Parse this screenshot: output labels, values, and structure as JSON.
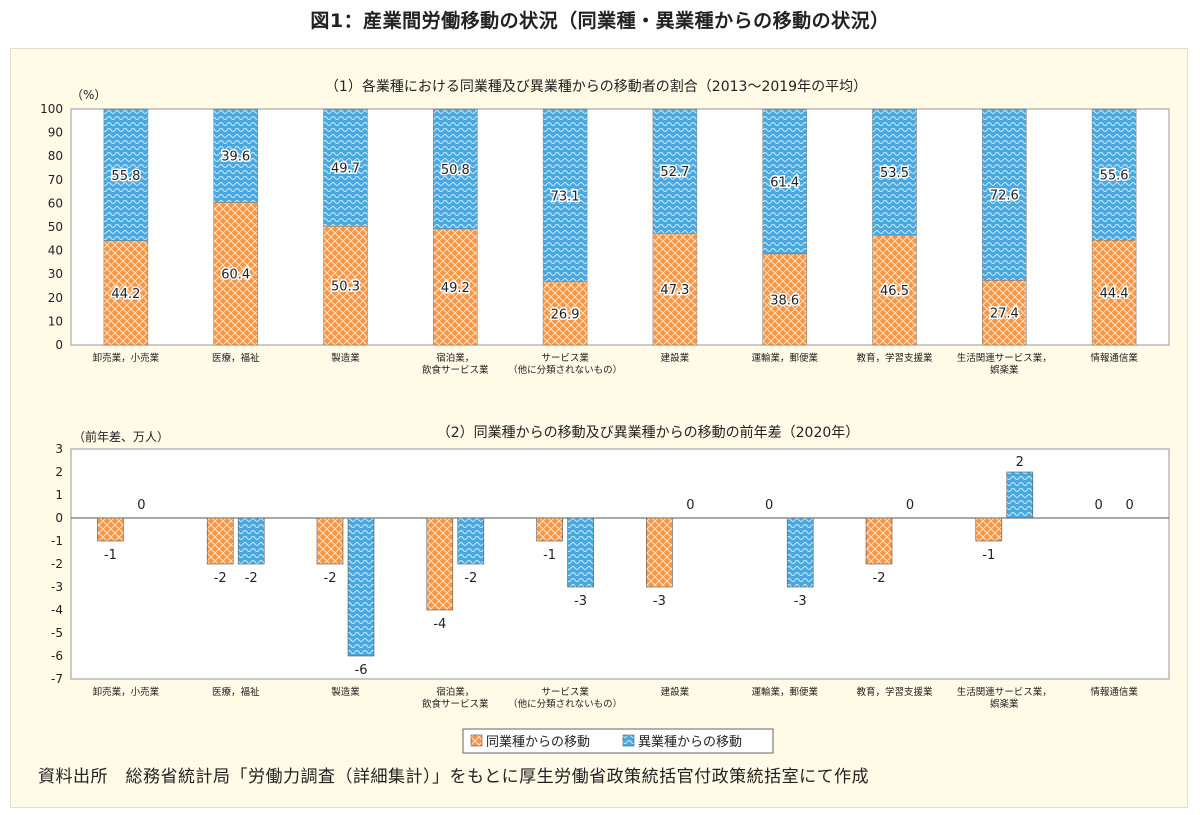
{
  "page": {
    "title": "図1：産業間労働移動の状況（同業種・異業種からの移動の状況）",
    "source": "資料出所　総務省統計局「労働力調査（詳細集計）」をもとに厚生労働省政策統括官付政策統括室にて作成"
  },
  "colors": {
    "same": "#f79646",
    "same_pattern": "#fde3c8",
    "diff": "#4aa8e0",
    "diff_pattern": "#d2ecfb",
    "frame": "#fffbe6"
  },
  "legend": {
    "same_label": "同業種からの移動",
    "diff_label": "異業種からの移動"
  },
  "chart_data": [
    {
      "type": "bar",
      "stacked": true,
      "title": "（1）各業種における同業種及び異業種からの移動者の割合（2013～2019年の平均）",
      "ylabel": "（%）",
      "ylim": [
        0,
        100
      ],
      "yticks": [
        0,
        10,
        20,
        30,
        40,
        50,
        60,
        70,
        80,
        90,
        100
      ],
      "categories": [
        [
          "卸売業，小売業"
        ],
        [
          "医療，福祉"
        ],
        [
          "製造業"
        ],
        [
          "宿泊業，",
          "飲食サービス業"
        ],
        [
          "サービス業",
          "（他に分類されないもの）"
        ],
        [
          "建設業"
        ],
        [
          "運輸業，郵便業"
        ],
        [
          "教育，学習支援業"
        ],
        [
          "生活関連サービス業，",
          "娯楽業"
        ],
        [
          "情報通信業"
        ]
      ],
      "series": [
        {
          "name": "同業種からの移動",
          "values": [
            44.2,
            60.4,
            50.3,
            49.2,
            26.9,
            47.3,
            38.6,
            46.5,
            27.4,
            44.4
          ]
        },
        {
          "name": "異業種からの移動",
          "values": [
            55.8,
            39.6,
            49.7,
            50.8,
            73.1,
            52.7,
            61.4,
            53.5,
            72.6,
            55.6
          ]
        }
      ],
      "grid": false
    },
    {
      "type": "bar",
      "title": "（2）同業種からの移動及び異業種からの移動の前年差（2020年）",
      "ylabel": "（前年差、万人）",
      "ylim": [
        -7,
        3
      ],
      "yticks": [
        3,
        2,
        1,
        0,
        -1,
        -2,
        -3,
        -4,
        -5,
        -6,
        -7
      ],
      "categories": [
        [
          "卸売業，小売業"
        ],
        [
          "医療，福祉"
        ],
        [
          "製造業"
        ],
        [
          "宿泊業，",
          "飲食サービス業"
        ],
        [
          "サービス業",
          "（他に分類されないもの）"
        ],
        [
          "建設業"
        ],
        [
          "運輸業，郵便業"
        ],
        [
          "教育，学習支援業"
        ],
        [
          "生活関連サービス業，",
          "娯楽業"
        ],
        [
          "情報通信業"
        ]
      ],
      "series": [
        {
          "name": "同業種からの移動",
          "values": [
            -1,
            -2,
            -2,
            -4,
            -1,
            -3,
            0,
            -2,
            -1,
            0
          ]
        },
        {
          "name": "異業種からの移動",
          "values": [
            0,
            -2,
            -6,
            -2,
            -3,
            0,
            -3,
            0,
            2,
            0
          ]
        }
      ],
      "show_zero_labels": [
        [
          false,
          true
        ],
        [
          true,
          true
        ],
        [
          true,
          true
        ],
        [
          true,
          true
        ],
        [
          true,
          true
        ],
        [
          true,
          true
        ],
        [
          true,
          true
        ],
        [
          true,
          true
        ],
        [
          true,
          true
        ],
        [
          true,
          true
        ]
      ],
      "legend_position": "bottom-center",
      "grid": false
    }
  ]
}
